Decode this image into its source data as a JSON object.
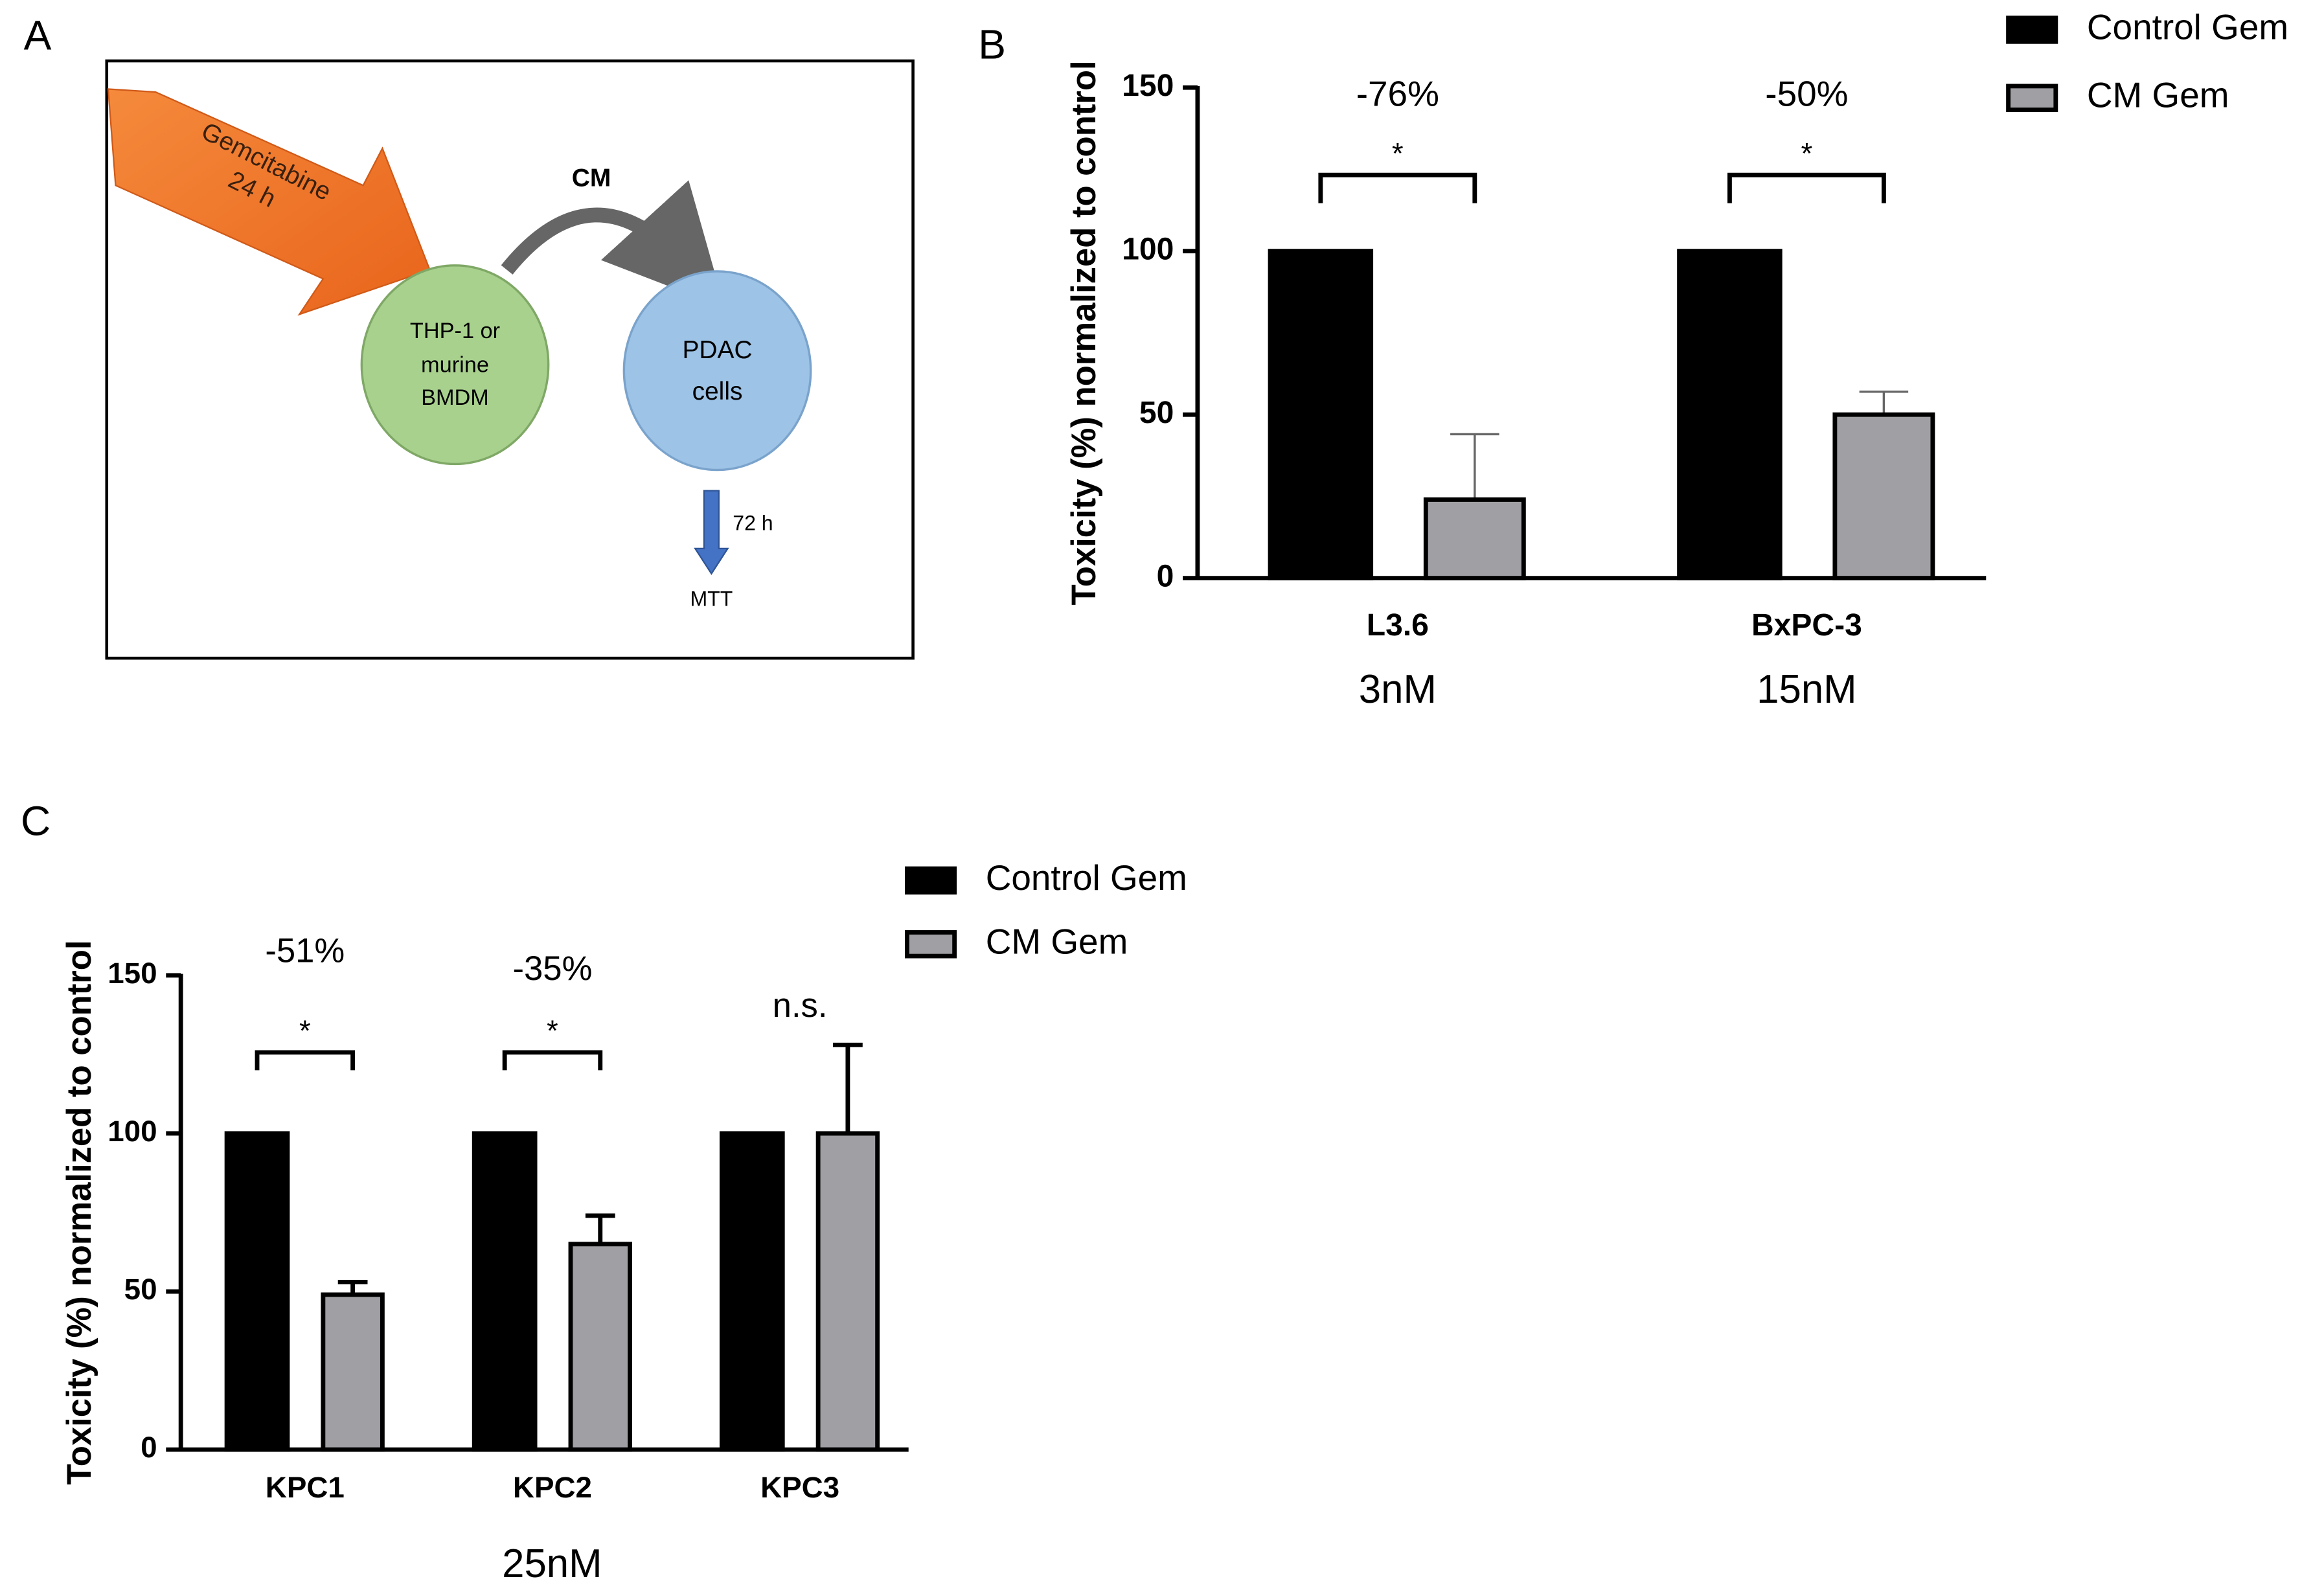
{
  "panel_labels": [
    "A",
    "B",
    "C"
  ],
  "diagram": {
    "arrow_label": [
      "Gemcitabine",
      "24 h"
    ],
    "transfer_label": "CM",
    "source_cell": [
      "THP-1 or",
      "murine",
      "BMDM"
    ],
    "target_cell": [
      "PDAC",
      "cells"
    ],
    "time": "72 h",
    "assay": "MTT"
  },
  "chart_data": [
    {
      "type": "bar",
      "ylabel": "Toxicity (%) normalized to control",
      "categories": [
        "L3.6",
        "BxPC-3"
      ],
      "concentrations": [
        "3nM",
        "15nM"
      ],
      "series": [
        {
          "name": "Control Gem",
          "color": "#000000",
          "values": [
            100,
            100
          ]
        },
        {
          "name": "CM Gem",
          "color": "#a0a0a4",
          "values": [
            24,
            50
          ],
          "errors": [
            20,
            7
          ]
        }
      ],
      "ylim": [
        0,
        150
      ],
      "yticks": [
        0,
        50,
        100,
        150
      ],
      "annotations": [
        "-76%",
        "-50%"
      ],
      "significance": [
        "*",
        "*"
      ]
    },
    {
      "type": "bar",
      "ylabel": "Toxicity (%) normalized to control",
      "categories": [
        "KPC1",
        "KPC2",
        "KPC3"
      ],
      "xlabel": "25nM",
      "series": [
        {
          "name": "Control Gem",
          "color": "#000000",
          "values": [
            100,
            100,
            100
          ]
        },
        {
          "name": "CM Gem",
          "color": "#a0a0a4",
          "values": [
            49,
            65,
            100
          ],
          "errors": [
            4,
            9,
            28
          ]
        }
      ],
      "ylim": [
        0,
        150
      ],
      "yticks": [
        0,
        50,
        100,
        150
      ],
      "annotations": [
        "-51%",
        "-35%",
        "n.s."
      ],
      "significance": [
        "*",
        "*"
      ]
    }
  ]
}
